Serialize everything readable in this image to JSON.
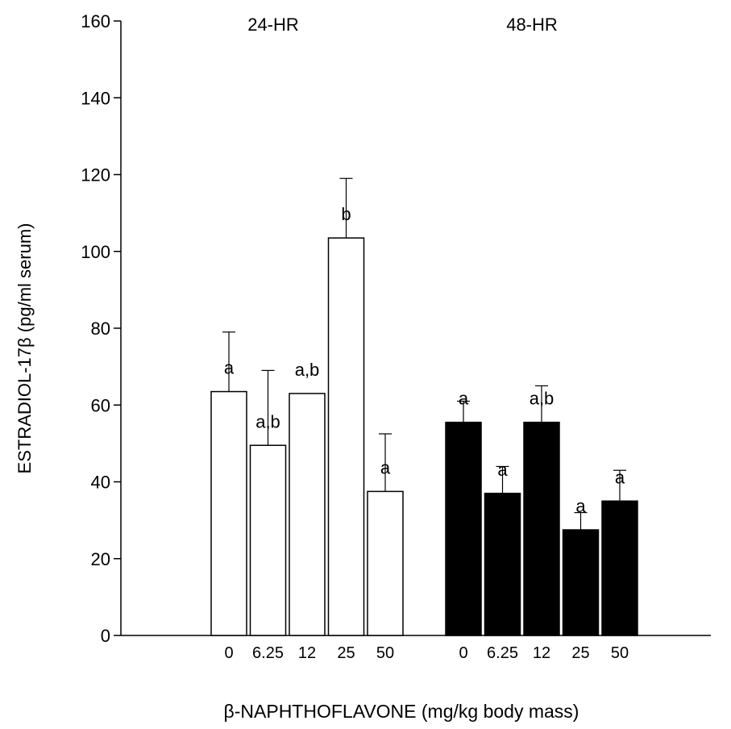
{
  "chart_data": {
    "type": "bar",
    "ylabel": "ESTRADIOL-17β (pg/ml serum)",
    "xlabel": "β-NAPHTHOFLAVONE (mg/kg body mass)",
    "ylim": [
      0,
      160
    ],
    "yticks": [
      "0",
      "20",
      "40",
      "60",
      "80",
      "100",
      "120",
      "140",
      "160"
    ],
    "grid": false,
    "groups": [
      {
        "label": "24-HR",
        "fill": "#ffffff",
        "categories": [
          "0",
          "6.25",
          "12",
          "25",
          "50"
        ],
        "values": [
          63.5,
          49.5,
          63,
          103.5,
          37.5
        ],
        "errors": [
          79,
          69,
          63,
          119,
          52.5
        ],
        "letters": [
          "a",
          "a,b",
          "a,b",
          "b",
          "a"
        ]
      },
      {
        "label": "48-HR",
        "fill": "#000000",
        "categories": [
          "0",
          "6.25",
          "12",
          "25",
          "50"
        ],
        "values": [
          55.5,
          37,
          55.5,
          27.5,
          35
        ],
        "errors": [
          61,
          44,
          65,
          32,
          43
        ],
        "letters": [
          "a",
          "a",
          "a,b",
          "a",
          "a"
        ]
      }
    ]
  }
}
